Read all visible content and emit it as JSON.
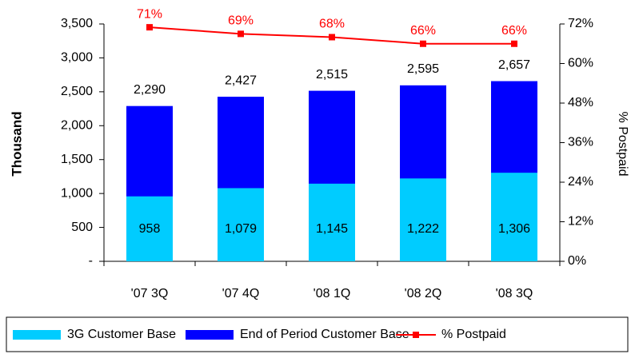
{
  "chart_data": {
    "type": "bar",
    "categories": [
      "'07 3Q",
      "'07 4Q",
      "'08 1Q",
      "'08 2Q",
      "'08 3Q"
    ],
    "series": [
      {
        "name": "3G Customer Base",
        "color": "#00ccff",
        "values": [
          958,
          1079,
          1145,
          1222,
          1306
        ],
        "value_labels": [
          "958",
          "1,079",
          "1,145",
          "1,222",
          "1,306"
        ]
      },
      {
        "name": "End of Period Customer Base",
        "color": "#0000ff",
        "values": [
          2290,
          2427,
          2515,
          2595,
          2657
        ],
        "value_labels": [
          "2,290",
          "2,427",
          "2,515",
          "2,595",
          "2,657"
        ]
      },
      {
        "name": "% Postpaid",
        "color": "#ff0000",
        "axis": "y2",
        "type": "line",
        "values": [
          71,
          69,
          68,
          66,
          66
        ],
        "value_labels": [
          "71%",
          "69%",
          "68%",
          "66%",
          "66%"
        ]
      }
    ],
    "y_label": "Thousand",
    "y2_label": "% Postpaid",
    "ylim": [
      0,
      3500
    ],
    "yticks": [
      {
        "value": 0,
        "label": "-"
      },
      500,
      {
        "value": 1000,
        "label": "1,000"
      },
      {
        "value": 1500,
        "label": "1,500"
      },
      {
        "value": 2000,
        "label": "2,000"
      },
      {
        "value": 2500,
        "label": "2,500"
      },
      {
        "value": 3000,
        "label": "3,000"
      },
      {
        "value": 3500,
        "label": "3,500"
      }
    ],
    "y2lim": [
      0,
      72
    ],
    "y2ticks": [
      {
        "value": 0,
        "label": "0%"
      },
      {
        "value": 12,
        "label": "12%"
      },
      {
        "value": 24,
        "label": "24%"
      },
      {
        "value": 36,
        "label": "36%"
      },
      {
        "value": 48,
        "label": "48%"
      },
      {
        "value": 60,
        "label": "60%"
      },
      {
        "value": 72,
        "label": "72%"
      }
    ],
    "legend": "bottom"
  }
}
